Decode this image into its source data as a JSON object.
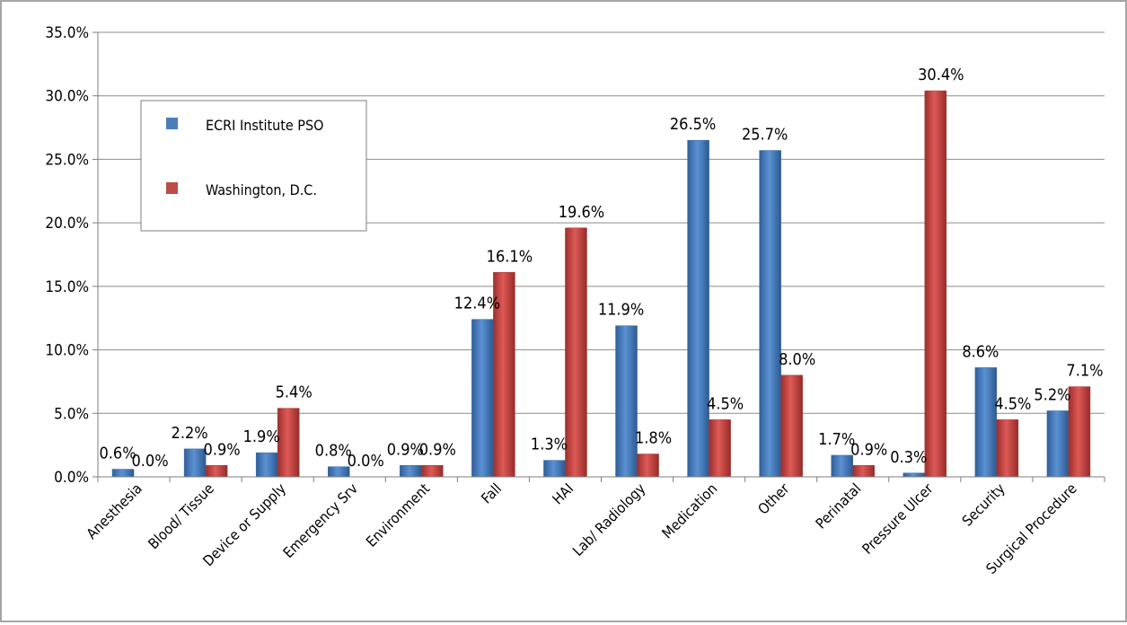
{
  "chart_data": {
    "type": "bar",
    "categories": [
      "Anesthesia",
      "Blood/ Tissue",
      "Device or Supply",
      "Emergency Srv",
      "Environment",
      "Fall",
      "HAI",
      "Lab/ Radiology",
      "Medication",
      "Other",
      "Perinatal",
      "Pressure Ulcer",
      "Security",
      "Surgical Procedure"
    ],
    "series": [
      {
        "name": "ECRI Institute PSO",
        "values": [
          0.6,
          2.2,
          1.9,
          0.8,
          0.9,
          12.4,
          1.3,
          11.9,
          26.5,
          25.7,
          1.7,
          0.3,
          8.6,
          5.2
        ],
        "labels": [
          "0.6%",
          "2.2%",
          "1.9%",
          "0.8%",
          "0.9%",
          "12.4%",
          "1.3%",
          "11.9%",
          "26.5%",
          "25.7%",
          "1.7%",
          "0.3%",
          "8.6%",
          "5.2%"
        ],
        "color": "#4a7ebb"
      },
      {
        "name": "Washington, D.C.",
        "values": [
          0.0,
          0.9,
          5.4,
          0.0,
          0.9,
          16.1,
          19.6,
          1.8,
          4.5,
          8.0,
          0.9,
          30.4,
          4.5,
          7.1
        ],
        "labels": [
          "0.0%",
          "0.9%",
          "5.4%",
          "0.0%",
          "0.9%",
          "16.1%",
          "19.6%",
          "1.8%",
          "4.5%",
          "8.0%",
          "0.9%",
          "30.4%",
          "4.5%",
          "7.1%"
        ],
        "color": "#be4b48"
      }
    ],
    "yticks": [
      "0.0%",
      "5.0%",
      "10.0%",
      "15.0%",
      "20.0%",
      "25.0%",
      "30.0%",
      "35.0%"
    ],
    "ylim": [
      0,
      35
    ],
    "grid": true,
    "legend_position": "upper-left"
  }
}
